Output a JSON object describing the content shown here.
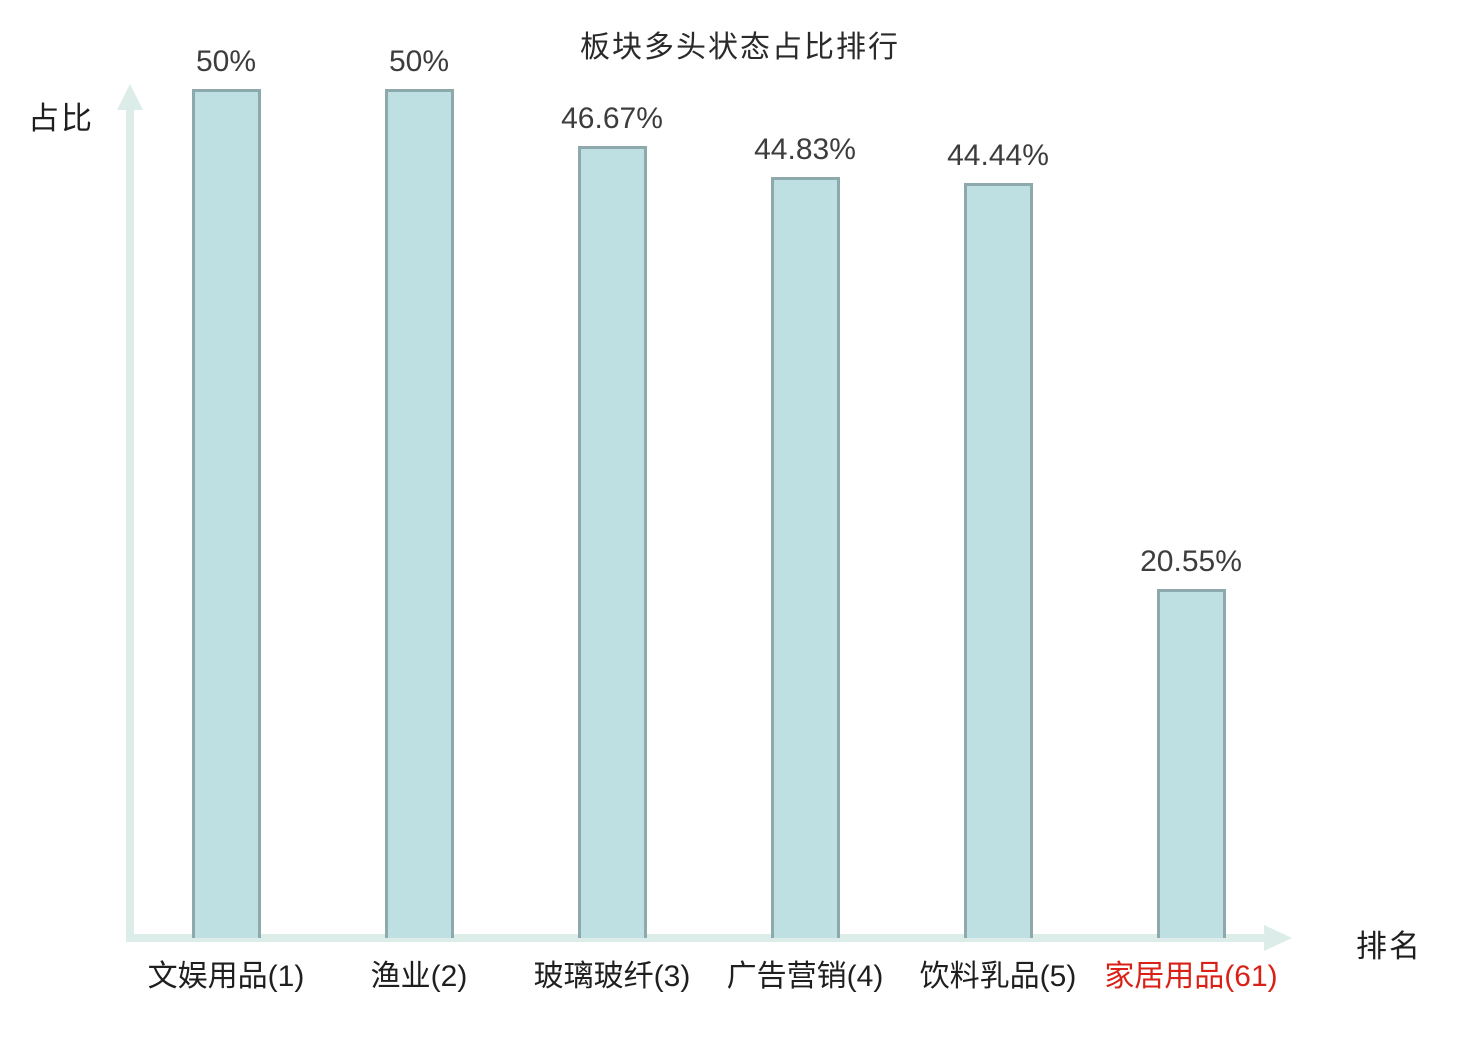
{
  "chart_data": {
    "type": "bar",
    "title": "板块多头状态占比排行",
    "xlabel": "排名",
    "ylabel": "占比",
    "categories": [
      "文娱用品(1)",
      "渔业(2)",
      "玻璃玻纤(3)",
      "广告营销(4)",
      "饮料乳品(5)",
      "家居用品(61)"
    ],
    "values": [
      50,
      50,
      46.67,
      44.83,
      44.44,
      20.55
    ],
    "value_labels": [
      "50%",
      "50%",
      "46.67%",
      "44.83%",
      "44.44%",
      "20.55%"
    ],
    "highlight_index": 5,
    "ylim": [
      0,
      50
    ],
    "grid": false,
    "legend": "none",
    "colors": {
      "bar_fill": "#bfe0e3",
      "bar_border": "#8ea9ab",
      "axis": "#dcede9",
      "value_text": "#3d3d3d",
      "category_text": "#1f1f1f",
      "highlight_text": "#da2117",
      "title_text": "#2a2a2a"
    }
  }
}
